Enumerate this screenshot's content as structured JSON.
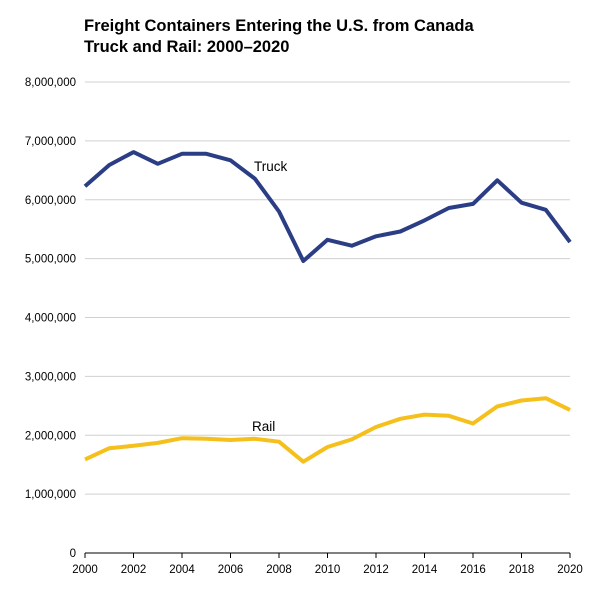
{
  "chart_data": {
    "type": "line",
    "title_line1": "Freight Containers Entering the U.S. from Canada",
    "title_line2": "Truck and Rail: 2000–2020",
    "xlabel": "",
    "ylabel": "",
    "x": [
      2000,
      2001,
      2002,
      2003,
      2004,
      2005,
      2006,
      2007,
      2008,
      2009,
      2010,
      2011,
      2012,
      2013,
      2014,
      2015,
      2016,
      2017,
      2018,
      2019,
      2020
    ],
    "x_ticks": [
      "2000",
      "2002",
      "2004",
      "2006",
      "2008",
      "2010",
      "2012",
      "2014",
      "2016",
      "2018",
      "2020"
    ],
    "xlim": [
      2000,
      2020
    ],
    "ylim": [
      0,
      8000000
    ],
    "y_ticks": [
      "0",
      "1,000,000",
      "2,000,000",
      "3,000,000",
      "4,000,000",
      "5,000,000",
      "6,000,000",
      "7,000,000",
      "8,000,000"
    ],
    "grid": "horizontal",
    "series": [
      {
        "name": "Truck",
        "color": "#2b3e85",
        "values": [
          6230000,
          6590000,
          6810000,
          6610000,
          6780000,
          6780000,
          6670000,
          6360000,
          5800000,
          4960000,
          5320000,
          5220000,
          5380000,
          5460000,
          5650000,
          5860000,
          5930000,
          6330000,
          5950000,
          5830000,
          5280000
        ]
      },
      {
        "name": "Rail",
        "color": "#f5c01c",
        "values": [
          1590000,
          1780000,
          1820000,
          1870000,
          1950000,
          1940000,
          1920000,
          1940000,
          1890000,
          1550000,
          1800000,
          1930000,
          2140000,
          2280000,
          2350000,
          2330000,
          2200000,
          2490000,
          2590000,
          2630000,
          2430000
        ]
      }
    ]
  }
}
